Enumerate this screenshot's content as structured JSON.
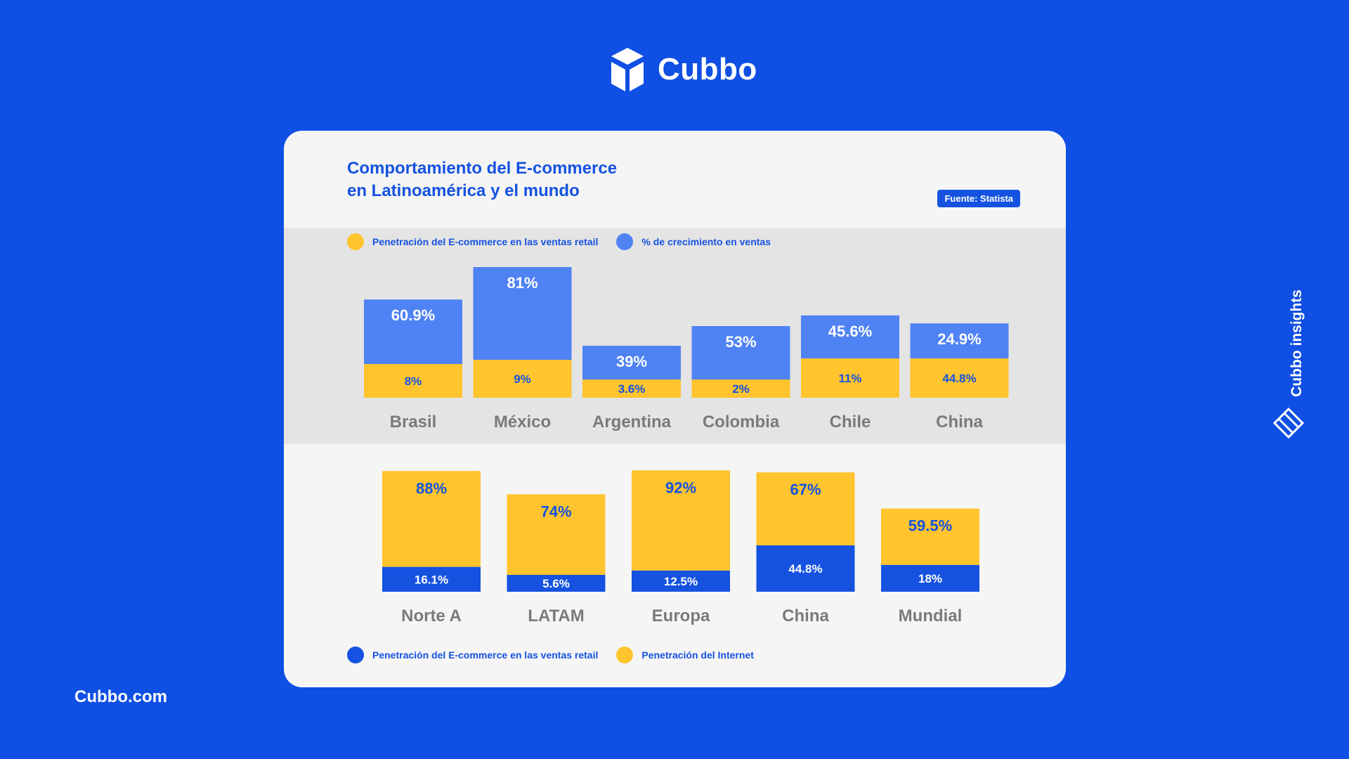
{
  "brand": {
    "name": "Cubbo",
    "url": "Cubbo.com",
    "side_label": "Cubbo insights"
  },
  "header": {
    "title_line1": "Comportamiento del E-commerce",
    "title_line2": "en Latinoamérica y el mundo",
    "source": "Fuente: Statista"
  },
  "legend_top": {
    "penetration": "Penetración del E-commerce en las ventas retail",
    "growth": "% de crecimiento en ventas"
  },
  "legend_bottom": {
    "penetration": "Penetración del E-commerce en las ventas retail",
    "internet": "Penetración del Internet"
  },
  "colors": {
    "background": "#0f4fe3",
    "yellow": "#ffc42e",
    "light_blue": "#4f82f3",
    "dark_blue": "#1552e0",
    "label_gray": "#7a7a7a"
  },
  "chart_data": [
    {
      "type": "bar",
      "stacked": true,
      "categories": [
        "Brasil",
        "México",
        "Argentina",
        "Colombia",
        "Chile",
        "China"
      ],
      "series": [
        {
          "name": "Penetración del E-commerce en las ventas retail",
          "values": [
            8,
            9,
            3.6,
            2,
            11,
            44.8
          ],
          "labels": [
            "8%",
            "9%",
            "3.6%",
            "2%",
            "11%",
            "44.8%"
          ],
          "color": "#ffc42e"
        },
        {
          "name": "% de crecimiento en ventas",
          "values": [
            60.9,
            81,
            39,
            53,
            45.6,
            24.9
          ],
          "labels": [
            "60.9%",
            "81%",
            "39%",
            "53%",
            "45.6%",
            "24.9%"
          ],
          "color": "#4f82f3"
        }
      ]
    },
    {
      "type": "bar",
      "stacked": true,
      "categories": [
        "Norte A",
        "LATAM",
        "Europa",
        "China",
        "Mundial"
      ],
      "series": [
        {
          "name": "Penetración del E-commerce en las ventas retail",
          "values": [
            16.1,
            5.6,
            12.5,
            44.8,
            18
          ],
          "labels": [
            "16.1%",
            "5.6%",
            "12.5%",
            "44.8%",
            "18%"
          ],
          "color": "#1552e0"
        },
        {
          "name": "Penetración del Internet",
          "values": [
            88,
            74,
            92,
            67,
            59.5
          ],
          "labels": [
            "88%",
            "74%",
            "92%",
            "67%",
            "59.5%"
          ],
          "color": "#ffc42e"
        }
      ]
    }
  ]
}
